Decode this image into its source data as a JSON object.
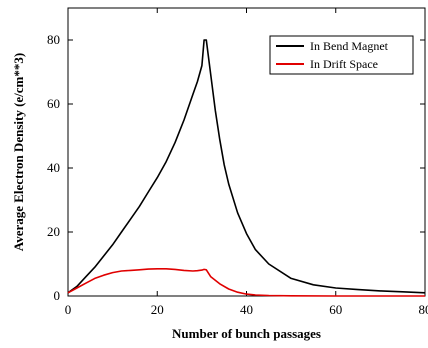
{
  "chart_data": {
    "type": "line",
    "title": "",
    "xlabel": "Number of bunch passages",
    "ylabel": "Average Electron Density (e/cm**3)",
    "xlim": [
      0,
      80
    ],
    "ylim": [
      0,
      90
    ],
    "xticks": [
      0,
      20,
      40,
      60,
      80
    ],
    "yticks": [
      0,
      20,
      40,
      60,
      80
    ],
    "grid": false,
    "legend_position": "top-right",
    "series": [
      {
        "name": "In Bend Magnet",
        "color": "#000000",
        "x": [
          0,
          2,
          4,
          6,
          8,
          10,
          12,
          14,
          16,
          18,
          20,
          22,
          24,
          26,
          28,
          29,
          30,
          30.5,
          31,
          32,
          33,
          34,
          35,
          36,
          38,
          40,
          42,
          45,
          50,
          55,
          60,
          65,
          70,
          75,
          80
        ],
        "y": [
          1,
          3,
          6,
          9,
          12.5,
          16,
          20,
          24,
          28,
          32.5,
          37,
          42,
          48,
          55,
          63,
          67,
          72,
          80,
          80,
          69,
          58,
          49,
          41,
          35,
          26,
          19.5,
          14.5,
          10,
          5.5,
          3.5,
          2.5,
          2,
          1.6,
          1.3,
          1
        ]
      },
      {
        "name": "In Drift Space",
        "color": "#e00000",
        "x": [
          0,
          2,
          4,
          6,
          8,
          10,
          12,
          14,
          16,
          18,
          20,
          22,
          24,
          26,
          28,
          29,
          30,
          30.5,
          31,
          32,
          34,
          36,
          38,
          40,
          42,
          45,
          50,
          60,
          80
        ],
        "y": [
          1,
          2.5,
          4,
          5.5,
          6.5,
          7.3,
          7.8,
          8,
          8.2,
          8.4,
          8.5,
          8.5,
          8.3,
          8,
          7.8,
          7.9,
          8.1,
          8.3,
          8.2,
          6,
          3.8,
          2.2,
          1.2,
          0.6,
          0.3,
          0.15,
          0.05,
          0,
          0
        ]
      }
    ]
  }
}
